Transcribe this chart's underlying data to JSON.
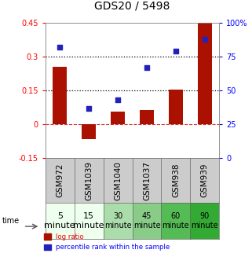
{
  "title": "GDS20 / 5498",
  "samples": [
    "GSM972",
    "GSM1039",
    "GSM1040",
    "GSM1037",
    "GSM938",
    "GSM939"
  ],
  "time_labels": [
    "5\nminute",
    "15\nminute",
    "30\nminute",
    "45\nminute",
    "60\nminute",
    "90\nminute"
  ],
  "time_bg_colors": [
    "#eeffee",
    "#eeffee",
    "#aaddaa",
    "#88cc88",
    "#55bb55",
    "#33aa33"
  ],
  "gsm_bg_color": "#cccccc",
  "log_ratio": [
    0.255,
    -0.065,
    0.055,
    0.065,
    0.155,
    0.455
  ],
  "percentile_rank": [
    82,
    37,
    43,
    67,
    79,
    88
  ],
  "bar_color": "#aa1100",
  "dot_color": "#2222bb",
  "ylim_left": [
    -0.15,
    0.45
  ],
  "ylim_right": [
    0,
    100
  ],
  "yticks_left": [
    -0.15,
    0.0,
    0.15,
    0.3,
    0.45
  ],
  "yticks_right": [
    0,
    25,
    50,
    75,
    100
  ],
  "hline_y": [
    0.15,
    0.3
  ],
  "zero_line_color": "#cc3333",
  "bg_color": "#ffffff",
  "legend_red_label": "log ratio",
  "legend_blue_label": "percentile rank within the sample",
  "time_font_sizes": [
    8,
    8,
    7,
    7,
    7,
    7
  ],
  "gsm_fontsize": 7.5,
  "title_fontsize": 10
}
